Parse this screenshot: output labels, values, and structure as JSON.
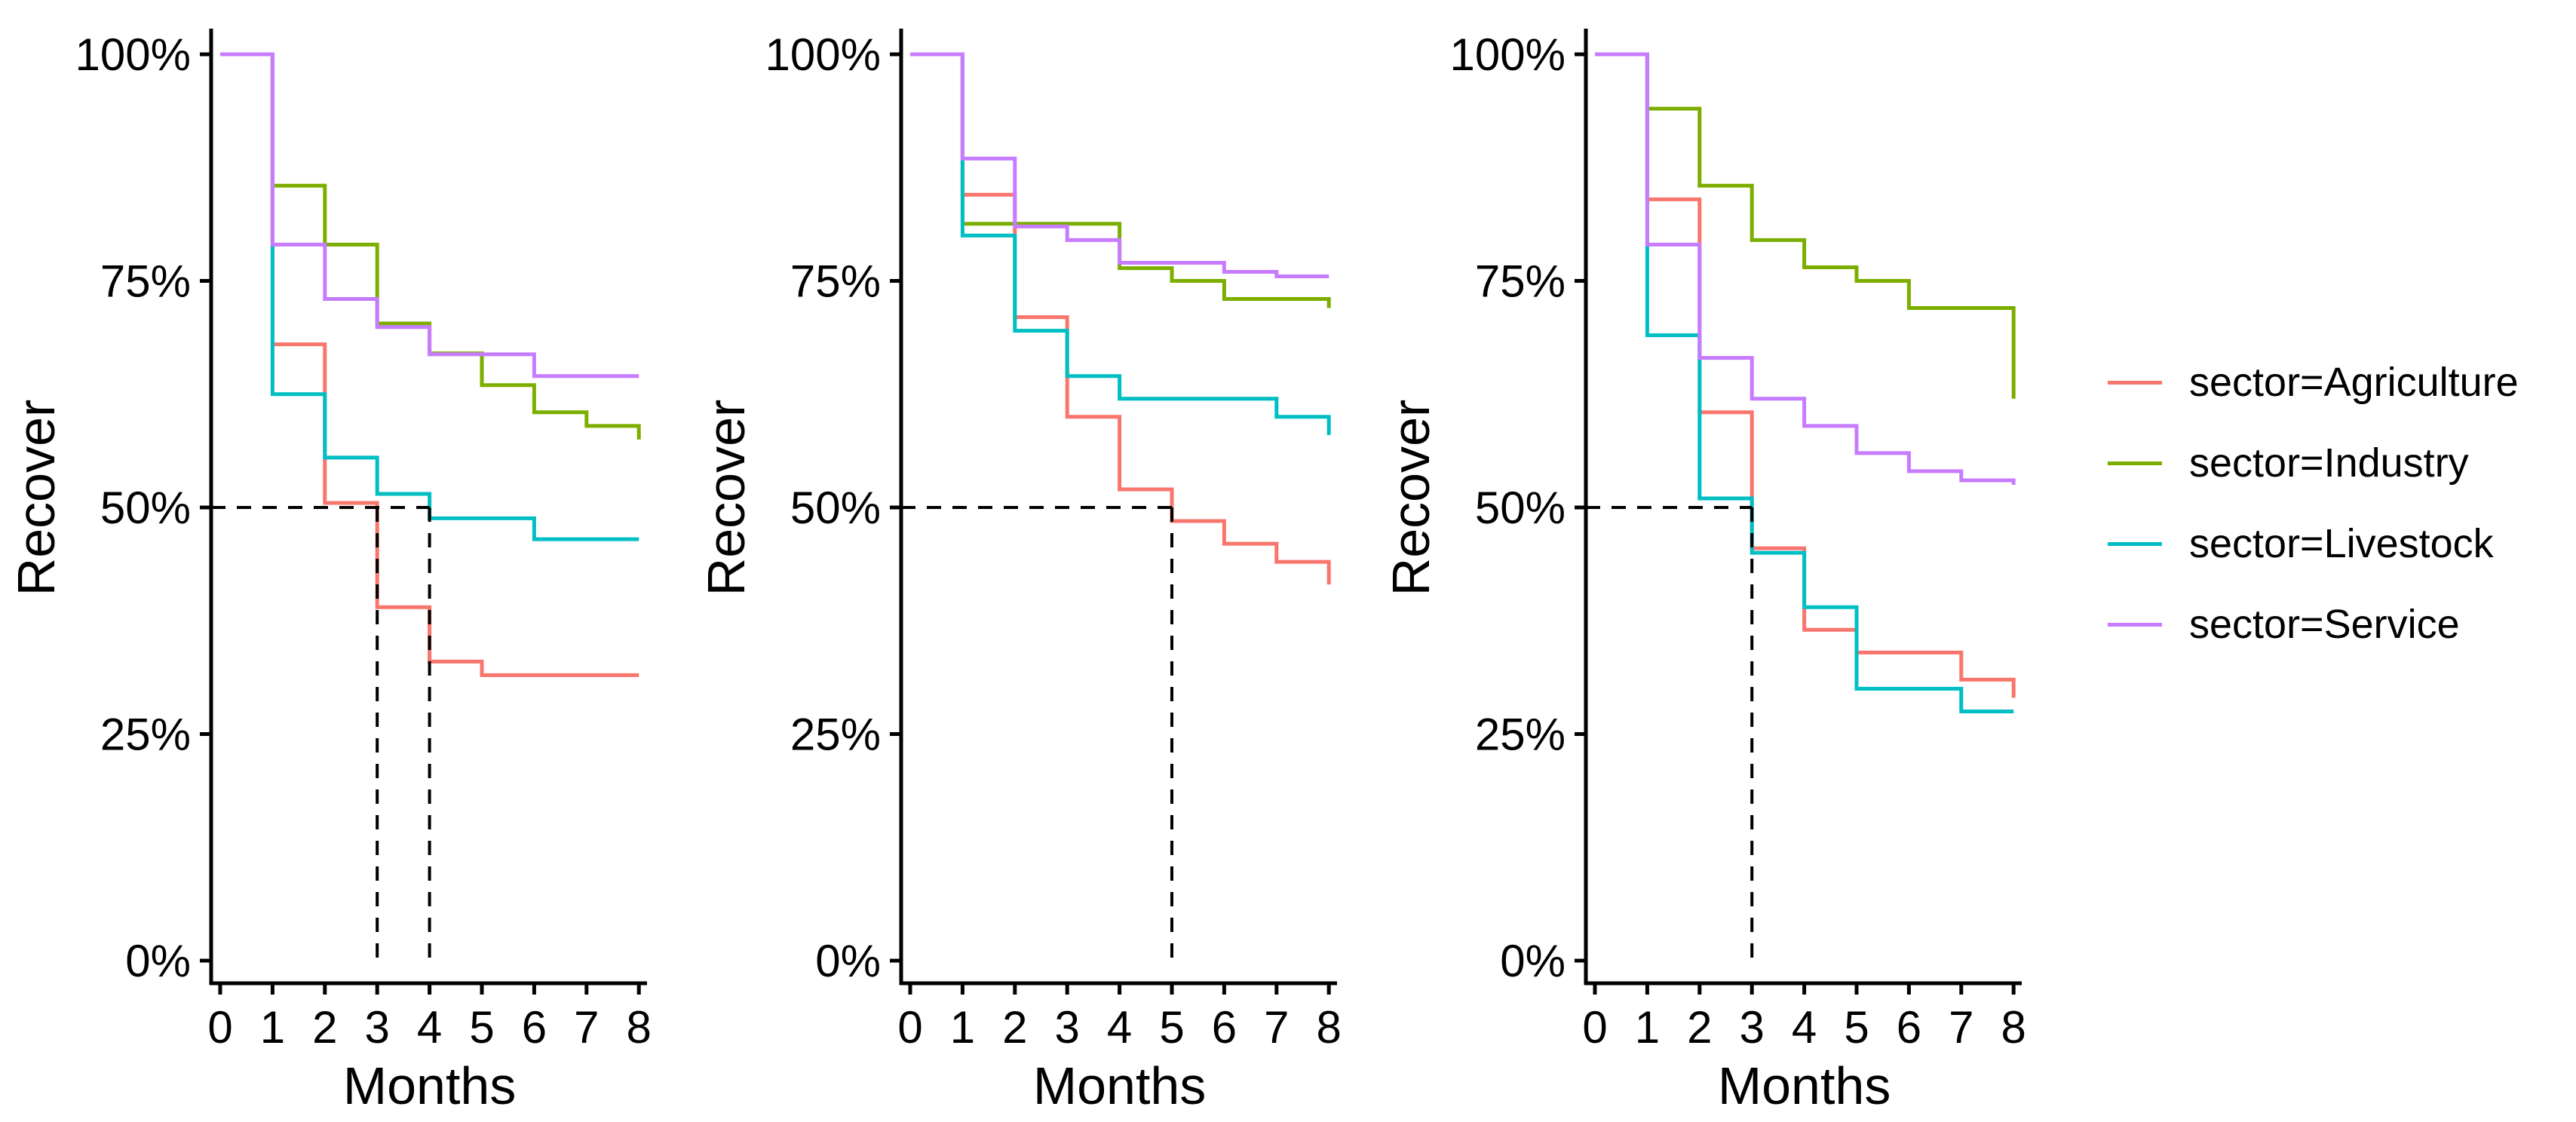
{
  "figure": {
    "background": "#FFFFFF",
    "description": "Three Kaplan-Meier style step plots of recovery probability by sector over months, with 50% median dashed guides",
    "axis_color": "#000000",
    "guide_color": "#000000"
  },
  "colors": {
    "agriculture": "#F8766D",
    "industry": "#7CAE00",
    "livestock": "#00BFC4",
    "service": "#C77CFF"
  },
  "legend": {
    "items": [
      {
        "label": "sector=Agriculture",
        "color": "#F8766D"
      },
      {
        "label": "sector=Industry",
        "color": "#7CAE00"
      },
      {
        "label": "sector=Livestock",
        "color": "#00BFC4"
      },
      {
        "label": "sector=Service",
        "color": "#C77CFF"
      }
    ]
  },
  "chart_data": [
    {
      "type": "line",
      "subtype": "step-survival",
      "title": "",
      "xlabel": "Months",
      "ylabel": "Recover",
      "xlim": [
        0,
        8
      ],
      "ylim": [
        0,
        100
      ],
      "grid": false,
      "xticks": [
        "0",
        "1",
        "2",
        "3",
        "4",
        "5",
        "6",
        "7",
        "8"
      ],
      "yticks": [
        {
          "value": 100,
          "label": "100%"
        },
        {
          "value": 75,
          "label": "75%"
        },
        {
          "value": 50,
          "label": "50%"
        },
        {
          "value": 25,
          "label": "25%"
        },
        {
          "value": 0,
          "label": "0%"
        }
      ],
      "median_guides": {
        "y_percent": 50,
        "horizontal_to_month": 4,
        "vertical_at_months": [
          3,
          4
        ]
      },
      "series": [
        {
          "name": "sector=Agriculture",
          "color": "#F8766D",
          "steps": [
            [
              0,
              100
            ],
            [
              1,
              68
            ],
            [
              2,
              50.5
            ],
            [
              3,
              39
            ],
            [
              4,
              33
            ],
            [
              5,
              31.5
            ],
            [
              8,
              31.5
            ]
          ]
        },
        {
          "name": "sector=Industry",
          "color": "#7CAE00",
          "steps": [
            [
              0,
              100
            ],
            [
              1,
              85.5
            ],
            [
              2,
              79
            ],
            [
              3,
              70.3
            ],
            [
              4,
              67
            ],
            [
              5,
              63.5
            ],
            [
              6,
              60.5
            ],
            [
              7,
              59
            ],
            [
              8,
              57.5
            ]
          ]
        },
        {
          "name": "sector=Livestock",
          "color": "#00BFC4",
          "steps": [
            [
              0,
              100
            ],
            [
              1,
              62.5
            ],
            [
              2,
              55.5
            ],
            [
              3,
              51.5
            ],
            [
              4,
              48.8
            ],
            [
              6,
              46.5
            ],
            [
              8,
              46.5
            ]
          ]
        },
        {
          "name": "sector=Service",
          "color": "#C77CFF",
          "steps": [
            [
              0,
              100
            ],
            [
              1,
              79
            ],
            [
              2,
              73
            ],
            [
              3,
              69.9
            ],
            [
              4,
              66.9
            ],
            [
              6,
              64.5
            ],
            [
              8,
              64.5
            ]
          ]
        }
      ]
    },
    {
      "type": "line",
      "subtype": "step-survival",
      "title": "",
      "xlabel": "Months",
      "ylabel": "Recover",
      "xlim": [
        0,
        8
      ],
      "ylim": [
        0,
        100
      ],
      "grid": false,
      "xticks": [
        "0",
        "1",
        "2",
        "3",
        "4",
        "5",
        "6",
        "7",
        "8"
      ],
      "yticks": [
        {
          "value": 100,
          "label": "100%"
        },
        {
          "value": 75,
          "label": "75%"
        },
        {
          "value": 50,
          "label": "50%"
        },
        {
          "value": 25,
          "label": "25%"
        },
        {
          "value": 0,
          "label": "0%"
        }
      ],
      "median_guides": {
        "y_percent": 50,
        "horizontal_to_month": 5,
        "vertical_at_months": [
          5
        ]
      },
      "series": [
        {
          "name": "sector=Agriculture",
          "color": "#F8766D",
          "steps": [
            [
              0,
              100
            ],
            [
              1,
              84.5
            ],
            [
              2,
              71
            ],
            [
              3,
              60
            ],
            [
              4,
              52
            ],
            [
              5,
              48.5
            ],
            [
              6,
              46
            ],
            [
              7,
              44
            ],
            [
              8,
              41.5
            ]
          ]
        },
        {
          "name": "sector=Industry",
          "color": "#7CAE00",
          "steps": [
            [
              0,
              100
            ],
            [
              1,
              81.3
            ],
            [
              4,
              76.4
            ],
            [
              5,
              75
            ],
            [
              6,
              73
            ],
            [
              8,
              72
            ]
          ]
        },
        {
          "name": "sector=Livestock",
          "color": "#00BFC4",
          "steps": [
            [
              0,
              100
            ],
            [
              1,
              80
            ],
            [
              2,
              69.5
            ],
            [
              3,
              64.5
            ],
            [
              4,
              62
            ],
            [
              7,
              60
            ],
            [
              8,
              58
            ]
          ]
        },
        {
          "name": "sector=Service",
          "color": "#C77CFF",
          "steps": [
            [
              0,
              100
            ],
            [
              1,
              88.5
            ],
            [
              2,
              81
            ],
            [
              3,
              79.5
            ],
            [
              4,
              77
            ],
            [
              6,
              76
            ],
            [
              7,
              75.5
            ],
            [
              8,
              75.5
            ]
          ]
        }
      ]
    },
    {
      "type": "line",
      "subtype": "step-survival",
      "title": "",
      "xlabel": "Months",
      "ylabel": "Recover",
      "xlim": [
        0,
        8
      ],
      "ylim": [
        0,
        100
      ],
      "grid": false,
      "xticks": [
        "0",
        "1",
        "2",
        "3",
        "4",
        "5",
        "6",
        "7",
        "8"
      ],
      "yticks": [
        {
          "value": 100,
          "label": "100%"
        },
        {
          "value": 75,
          "label": "75%"
        },
        {
          "value": 50,
          "label": "50%"
        },
        {
          "value": 25,
          "label": "25%"
        },
        {
          "value": 0,
          "label": "0%"
        }
      ],
      "median_guides": {
        "y_percent": 50,
        "horizontal_to_month": 3,
        "vertical_at_months": [
          3
        ]
      },
      "series": [
        {
          "name": "sector=Agriculture",
          "color": "#F8766D",
          "steps": [
            [
              0,
              100
            ],
            [
              1,
              84
            ],
            [
              2,
              60.5
            ],
            [
              3,
              45.5
            ],
            [
              4,
              36.5
            ],
            [
              5,
              34
            ],
            [
              7,
              31
            ],
            [
              8,
              29
            ]
          ]
        },
        {
          "name": "sector=Industry",
          "color": "#7CAE00",
          "steps": [
            [
              0,
              100
            ],
            [
              1,
              94
            ],
            [
              2,
              85.5
            ],
            [
              3,
              79.5
            ],
            [
              4,
              76.5
            ],
            [
              5,
              75
            ],
            [
              6,
              72
            ],
            [
              8,
              62
            ]
          ]
        },
        {
          "name": "sector=Livestock",
          "color": "#00BFC4",
          "steps": [
            [
              0,
              100
            ],
            [
              1,
              69
            ],
            [
              2,
              51
            ],
            [
              3,
              45
            ],
            [
              4,
              39
            ],
            [
              5,
              30
            ],
            [
              7,
              27.5
            ],
            [
              8,
              27.5
            ]
          ]
        },
        {
          "name": "sector=Service",
          "color": "#C77CFF",
          "steps": [
            [
              0,
              100
            ],
            [
              1,
              79
            ],
            [
              2,
              66.5
            ],
            [
              3,
              62
            ],
            [
              4,
              59
            ],
            [
              5,
              56
            ],
            [
              6,
              54
            ],
            [
              7,
              53
            ],
            [
              8,
              52.5
            ]
          ]
        }
      ]
    }
  ]
}
